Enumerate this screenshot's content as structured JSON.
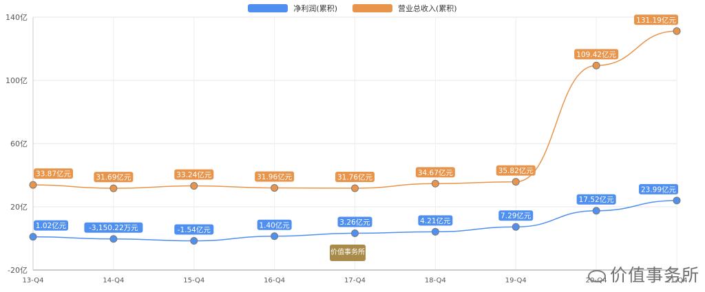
{
  "chart_data": {
    "type": "line",
    "categories": [
      "13-Q4",
      "14-Q4",
      "15-Q4",
      "16-Q4",
      "17-Q4",
      "18-Q4",
      "19-Q4",
      "20-Q4",
      "21-Q4"
    ],
    "ylim": [
      -20,
      140
    ],
    "yticks": [
      -20,
      20,
      60,
      100,
      140
    ],
    "ytick_labels": [
      "-20亿",
      "20亿",
      "60亿",
      "100亿",
      "140亿"
    ],
    "grid": true,
    "legend_position": "top-center",
    "series": [
      {
        "name": "净利润(累积)",
        "color": "#4e8ff0",
        "values": [
          1.02,
          -0.315,
          -1.54,
          1.4,
          3.26,
          4.21,
          7.29,
          17.52,
          23.99
        ],
        "labels": [
          "1.02亿元",
          "-3,150.22万元",
          "-1.54亿元",
          "1.40亿元",
          "3.26亿元",
          "4.21亿元",
          "7.29亿元",
          "17.52亿元",
          "23.99亿元"
        ]
      },
      {
        "name": "营业总收入(累积)",
        "color": "#e8944a",
        "values": [
          33.87,
          31.69,
          33.24,
          31.96,
          31.76,
          34.67,
          35.82,
          109.42,
          131.19
        ],
        "labels": [
          "33.87亿元",
          "31.69亿元",
          "33.24亿元",
          "31.96亿元",
          "31.76亿元",
          "34.67亿元",
          "35.82亿元",
          "109.42亿元",
          "131.19亿元"
        ]
      }
    ]
  },
  "watermark": {
    "center_text": "价值事务所",
    "corner_text": "价值事务所"
  }
}
